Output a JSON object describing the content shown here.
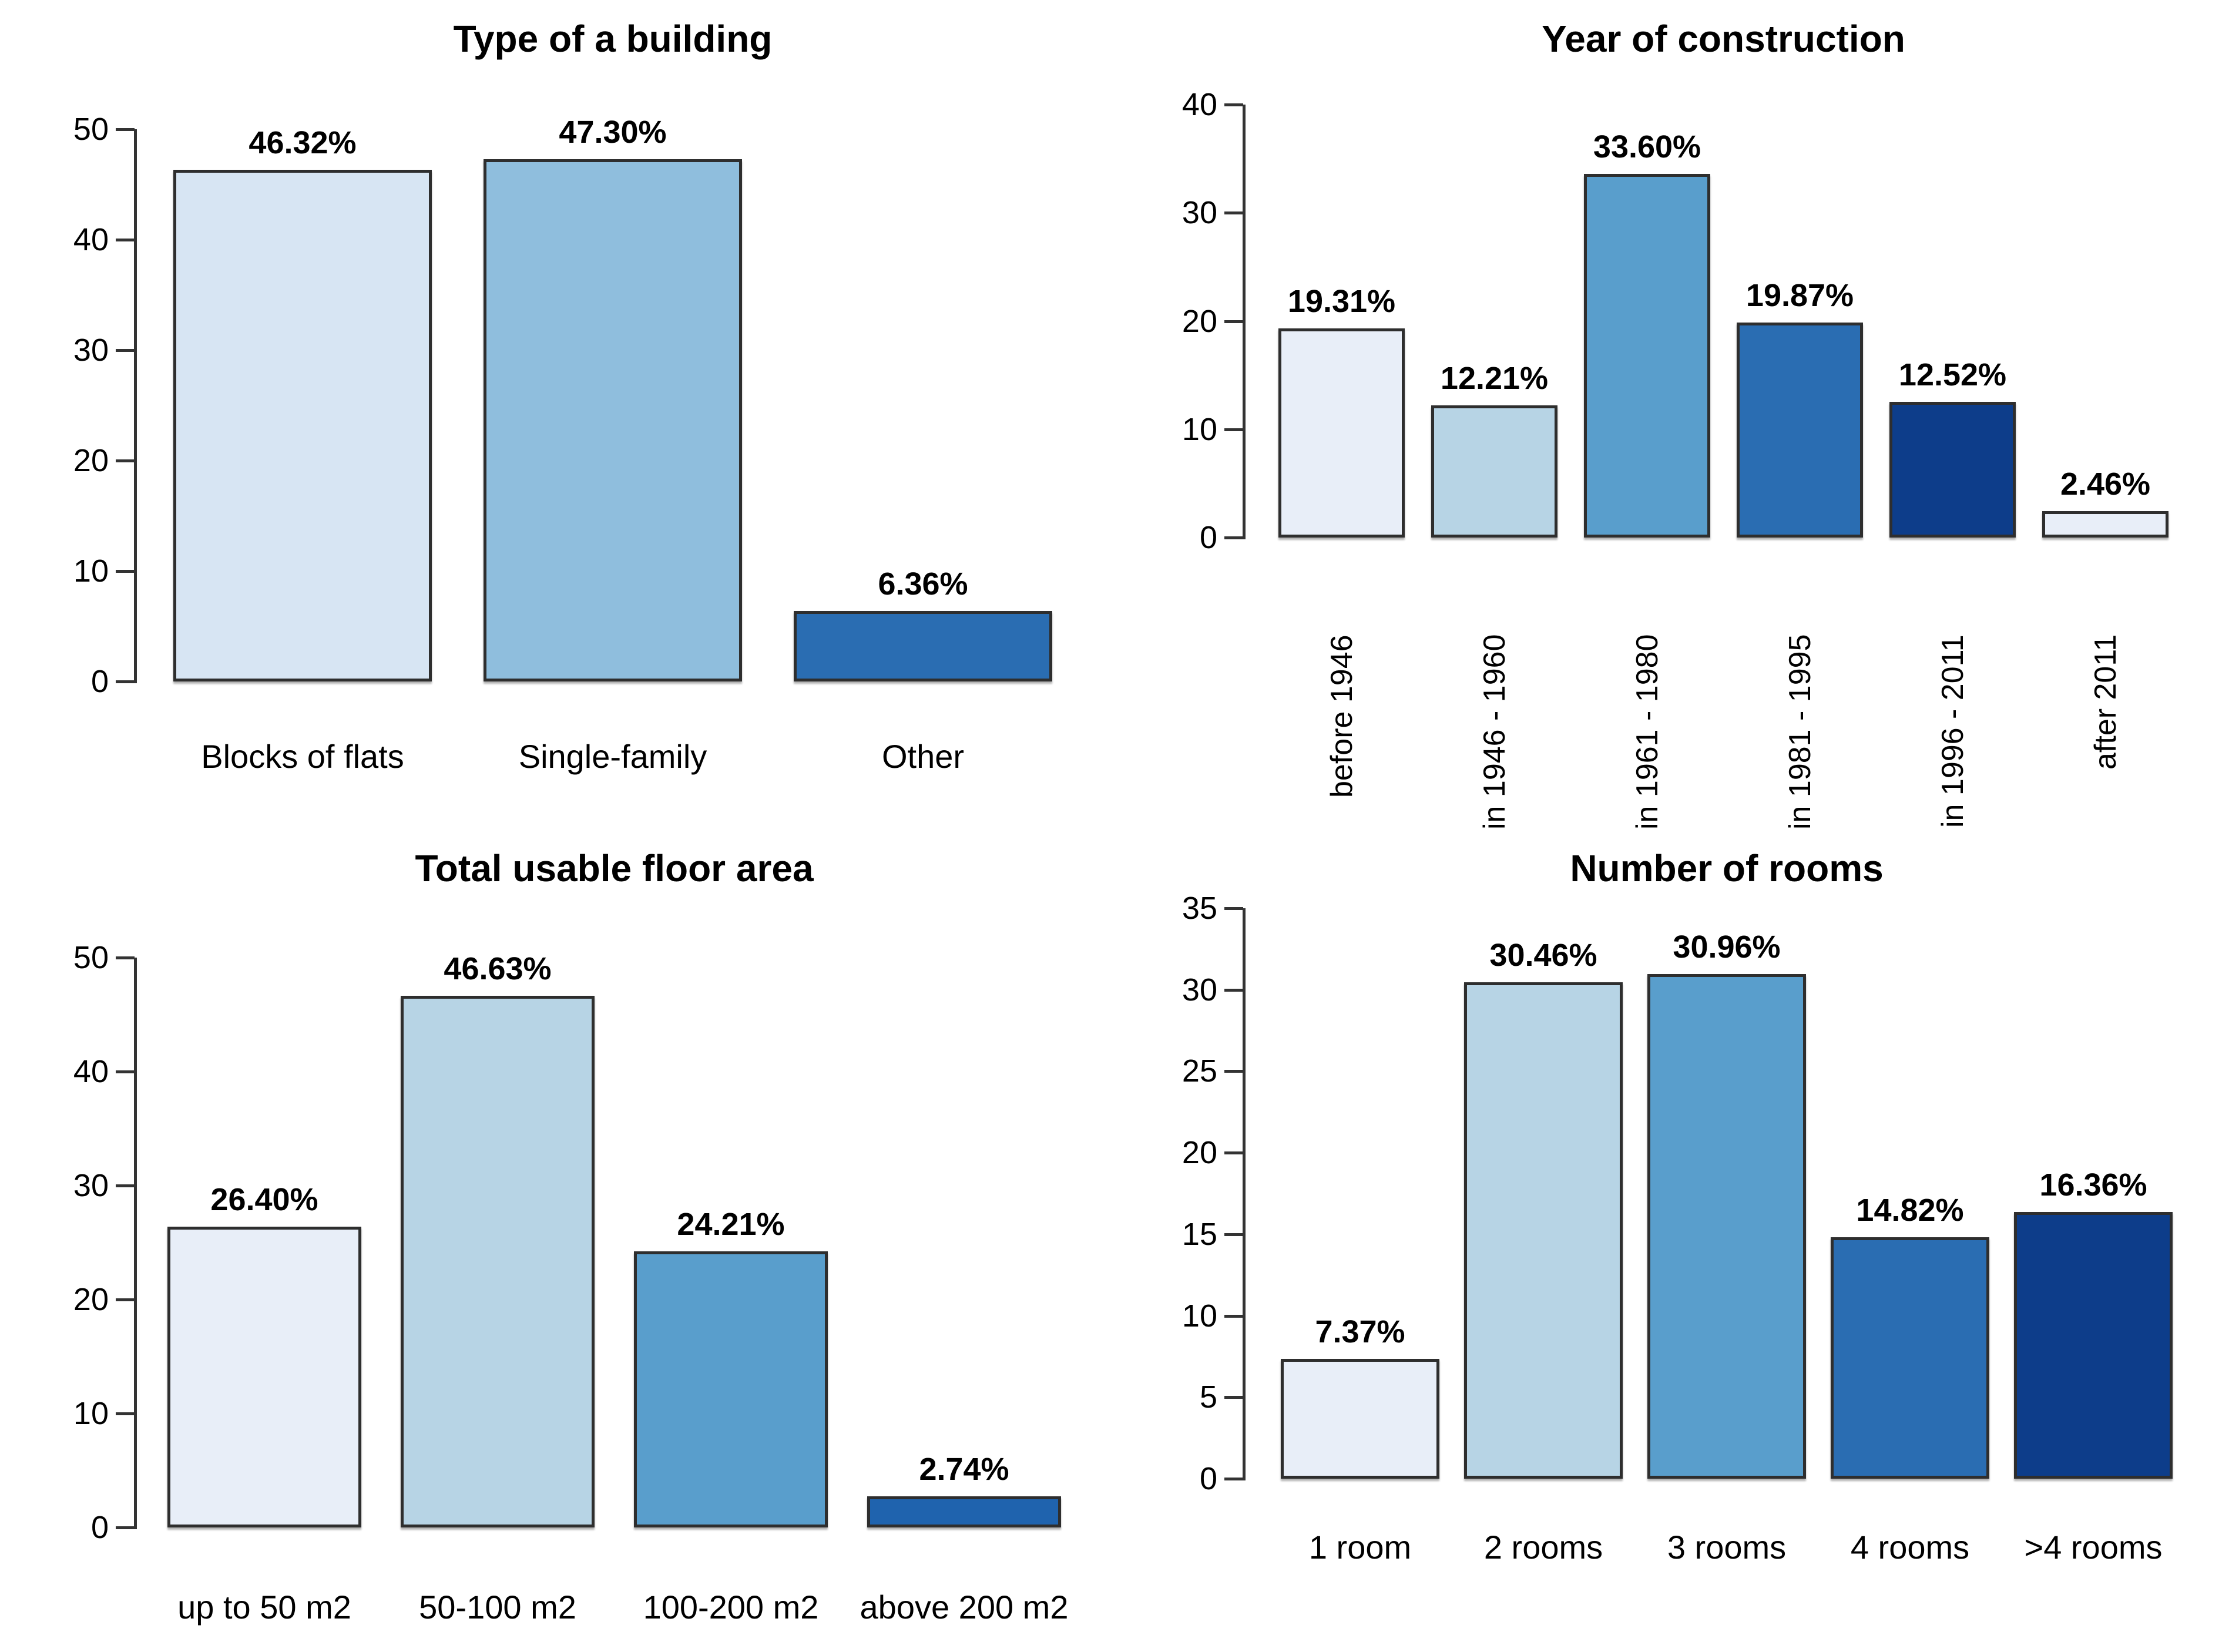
{
  "figure": {
    "background": "#FFFFFF"
  },
  "styles": {
    "axis_color": "#333333",
    "bar_border_color": "#2E2E2E",
    "text_color": "#000000"
  },
  "chart_data": [
    {
      "id": "type-of-building",
      "type": "bar",
      "title": "Type of a building",
      "categories": [
        "Blocks of flats",
        "Single-family",
        "Other"
      ],
      "values": [
        46.32,
        47.3,
        6.36
      ],
      "value_labels": [
        "46.32%",
        "47.30%",
        "6.36%"
      ],
      "bar_colors": [
        "#D7E5F3",
        "#8FBEDD",
        "#2A6DB2"
      ],
      "ylim": [
        0,
        50
      ],
      "yticks": [
        0,
        10,
        20,
        30,
        40,
        50
      ],
      "xlabel": "",
      "ylabel": "",
      "grid": false,
      "legend": "none",
      "rotated_x_labels": false
    },
    {
      "id": "year-of-construction",
      "type": "bar",
      "title": "Year of construction",
      "categories": [
        "before 1946",
        "in 1946 - 1960",
        "in 1961 - 1980",
        "in 1981 - 1995",
        "in 1996 - 2011",
        "after 2011"
      ],
      "values": [
        19.31,
        12.21,
        33.6,
        19.87,
        12.52,
        2.46
      ],
      "value_labels": [
        "19.31%",
        "12.21%",
        "33.60%",
        "19.87%",
        "12.52%",
        "2.46%"
      ],
      "bar_colors": [
        "#E8EEF8",
        "#B7D4E5",
        "#599ECC",
        "#2A6DB2",
        "#0D3D8A",
        "#E8EEF8"
      ],
      "ylim": [
        0,
        40
      ],
      "yticks": [
        0,
        10,
        20,
        30,
        40
      ],
      "xlabel": "",
      "ylabel": "",
      "grid": false,
      "legend": "none",
      "rotated_x_labels": true
    },
    {
      "id": "total-usable-floor-area",
      "type": "bar",
      "title": "Total usable floor area",
      "categories": [
        "up to 50 m2",
        "50-100 m2",
        "100-200 m2",
        "above 200 m2"
      ],
      "values": [
        26.4,
        46.63,
        24.21,
        2.74
      ],
      "value_labels": [
        "26.40%",
        "46.63%",
        "24.21%",
        "2.74%"
      ],
      "bar_colors": [
        "#E8EEF8",
        "#B7D4E5",
        "#599ECC",
        "#1F63AE"
      ],
      "ylim": [
        0,
        50
      ],
      "yticks": [
        0,
        10,
        20,
        30,
        40,
        50
      ],
      "xlabel": "",
      "ylabel": "",
      "grid": false,
      "legend": "none",
      "rotated_x_labels": false
    },
    {
      "id": "number-of-rooms",
      "type": "bar",
      "title": "Number of rooms",
      "categories": [
        "1 room",
        "2 rooms",
        "3 rooms",
        "4 rooms",
        ">4 rooms"
      ],
      "values": [
        7.37,
        30.46,
        30.96,
        14.82,
        16.36
      ],
      "value_labels": [
        "7.37%",
        "30.46%",
        "30.96%",
        "14.82%",
        "16.36%"
      ],
      "bar_colors": [
        "#E8EEF8",
        "#B7D4E5",
        "#599ECC",
        "#2A6DB2",
        "#0D3D8A"
      ],
      "ylim": [
        0,
        35
      ],
      "yticks": [
        0,
        5,
        10,
        15,
        20,
        25,
        30,
        35
      ],
      "xlabel": "",
      "ylabel": "",
      "grid": false,
      "legend": "none",
      "rotated_x_labels": false
    }
  ]
}
